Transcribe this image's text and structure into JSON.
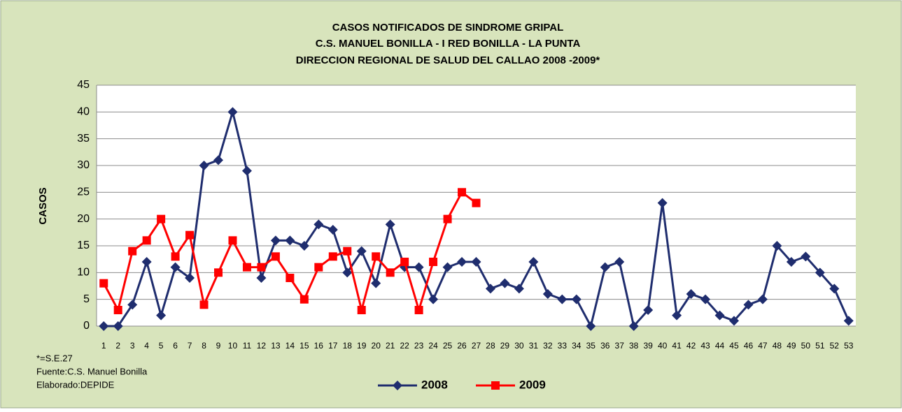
{
  "chart_data": {
    "type": "line",
    "title": [
      "CASOS NOTIFICADOS DE SINDROME GRIPAL",
      "C.S. MANUEL BONILLA  - I RED BONILLA - LA PUNTA",
      "DIRECCION REGIONAL  DE SALUD  DEL CALLAO   2008 -2009*"
    ],
    "y_label": "CASOS",
    "categories": [
      "1",
      "2",
      "3",
      "4",
      "5",
      "6",
      "7",
      "8",
      "9",
      "10",
      "11",
      "12",
      "13",
      "14",
      "15",
      "16",
      "17",
      "18",
      "19",
      "20",
      "21",
      "22",
      "23",
      "24",
      "25",
      "26",
      "27",
      "28",
      "29",
      "30",
      "31",
      "32",
      "33",
      "34",
      "35",
      "36",
      "37",
      "38",
      "39",
      "40",
      "41",
      "42",
      "43",
      "44",
      "45",
      "46",
      "47",
      "48",
      "49",
      "50",
      "51",
      "52",
      "53"
    ],
    "series": [
      {
        "name": "2008",
        "color": "#1f2d6e",
        "marker": "diamond",
        "values": [
          0,
          0,
          4,
          12,
          2,
          11,
          9,
          30,
          31,
          40,
          29,
          9,
          16,
          16,
          15,
          19,
          18,
          10,
          14,
          8,
          19,
          11,
          11,
          5,
          11,
          12,
          12,
          7,
          8,
          7,
          12,
          6,
          5,
          5,
          0,
          11,
          12,
          0,
          3,
          23,
          2,
          6,
          5,
          2,
          1,
          4,
          5,
          15,
          12,
          13,
          10,
          7,
          1
        ]
      },
      {
        "name": "2009",
        "color": "#ff0000",
        "marker": "square",
        "values": [
          8,
          3,
          14,
          16,
          20,
          13,
          17,
          4,
          10,
          16,
          11,
          11,
          13,
          9,
          5,
          11,
          13,
          14,
          3,
          13,
          10,
          12,
          3,
          12,
          20,
          25,
          23,
          null,
          null,
          null,
          null,
          null,
          null,
          null,
          null,
          null,
          null,
          null,
          null,
          null,
          null,
          null,
          null,
          null,
          null,
          null,
          null,
          null,
          null,
          null,
          null,
          null,
          null
        ]
      }
    ],
    "ylim": [
      0,
      45
    ],
    "yticks": [
      0,
      5,
      10,
      15,
      20,
      25,
      30,
      35,
      40,
      45
    ],
    "grid": true,
    "notes": [
      "*=S.E.27",
      "Fuente:C.S. Manuel Bonilla",
      "Elaborado:DEPIDE"
    ]
  }
}
